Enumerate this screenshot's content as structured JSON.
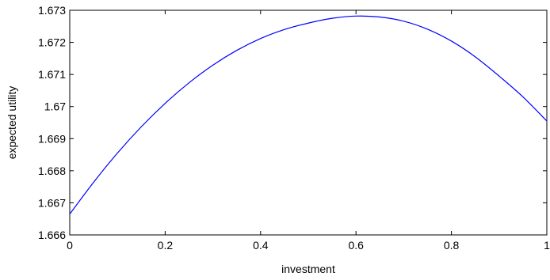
{
  "chart_data": {
    "type": "line",
    "title": "",
    "xlabel": "investment",
    "ylabel": "expected utility",
    "xlim": [
      0,
      1
    ],
    "ylim": [
      1.666,
      1.673
    ],
    "xticks": [
      0,
      0.2,
      0.4,
      0.6,
      0.8,
      1
    ],
    "xtick_labels": [
      "0",
      "0.2",
      "0.4",
      "0.6",
      "0.8",
      "1"
    ],
    "yticks": [
      1.666,
      1.667,
      1.668,
      1.669,
      1.67,
      1.671,
      1.672,
      1.673
    ],
    "ytick_labels": [
      "1.666",
      "1.667",
      "1.668",
      "1.669",
      "1.67",
      "1.671",
      "1.672",
      "1.673"
    ],
    "grid": false,
    "legend": "none",
    "line_color": "#0000ff",
    "series": [
      {
        "x": [
          0,
          0.05,
          0.1,
          0.15,
          0.2,
          0.25,
          0.3,
          0.35,
          0.4,
          0.45,
          0.5,
          0.55,
          0.6,
          0.65,
          0.7,
          0.75,
          0.8,
          0.85,
          0.9,
          0.95,
          1
        ],
        "values": [
          1.66665,
          1.66764,
          1.66855,
          1.66937,
          1.6701,
          1.67074,
          1.67129,
          1.67175,
          1.67212,
          1.6724,
          1.6726,
          1.67275,
          1.67282,
          1.67279,
          1.67266,
          1.67241,
          1.67204,
          1.67155,
          1.67095,
          1.6703,
          1.66955
        ]
      }
    ]
  }
}
